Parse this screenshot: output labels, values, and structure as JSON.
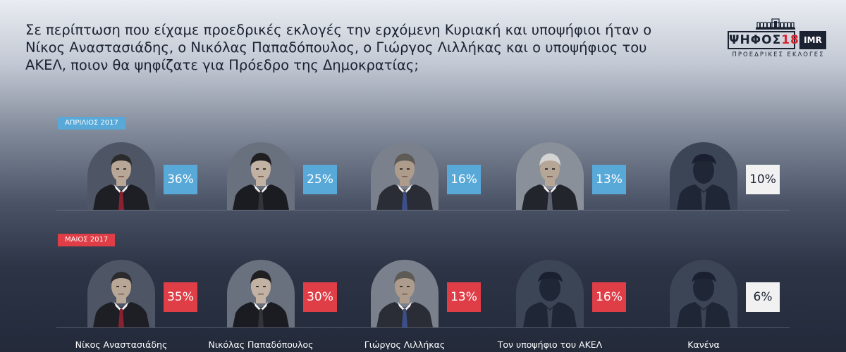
{
  "question": "Σε περίπτωση που είχαμε προεδρικές εκλογές την ερχόμενη Κυριακή και υποψήφιοι ήταν ο Νίκος Αναστασιάδης, ο Νικόλας Παπαδόπουλος, ο Γιώργος Λιλλήκας και ο υποψήφιος του ΑΚΕΛ, ποιον θα ψηφίζατε για Πρόεδρο της Δημοκρατίας;",
  "logo": {
    "main": "ΨΗΦΟΣ",
    "year": "18",
    "badge": "IMR",
    "subtitle": "ΠΡΟΕΔΡΙΚΕΣ ΕΚΛΟΓΕΣ"
  },
  "colors": {
    "april": "#58a9d8",
    "may": "#df3e47",
    "neutral": "#f1f1f1",
    "text_dark": "#1b2232"
  },
  "chart_data": {
    "type": "table",
    "categories": [
      "Νίκος Αναστασιάδης",
      "Νικόλας Παπαδόπουλος",
      "Γιώργος Λιλλήκας",
      "Τον υποψήφιο του ΑΚΕΛ",
      "Κανένα"
    ],
    "series": [
      {
        "name": "ΑΠΡΙΛΙΟΣ 2017",
        "values": [
          36,
          25,
          16,
          13,
          10
        ],
        "labels": [
          "36%",
          "25%",
          "16%",
          "13%",
          "10%"
        ],
        "photos": [
          "anastasiades-photo",
          "papadopoulos-photo",
          "lillikas-photo",
          "stefanou-photo",
          "silhouette-icon"
        ]
      },
      {
        "name": "ΜΑΙΟΣ 2017",
        "values": [
          35,
          30,
          13,
          16,
          6
        ],
        "labels": [
          "35%",
          "30%",
          "13%",
          "16%",
          "6%"
        ],
        "photos": [
          "anastasiades-photo",
          "papadopoulos-photo",
          "lillikas-photo",
          "silhouette-icon",
          "silhouette-icon"
        ]
      }
    ]
  }
}
